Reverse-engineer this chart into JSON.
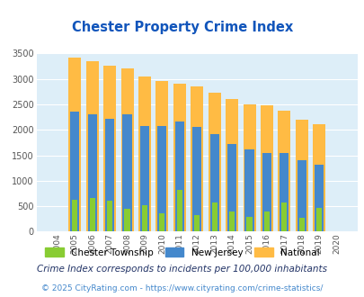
{
  "title": "Chester Property Crime Index",
  "years": [
    2004,
    2005,
    2006,
    2007,
    2008,
    2009,
    2010,
    2011,
    2012,
    2013,
    2014,
    2015,
    2016,
    2017,
    2018,
    2019,
    2020
  ],
  "chester": [
    0,
    620,
    660,
    610,
    450,
    520,
    360,
    820,
    330,
    570,
    400,
    290,
    400,
    570,
    280,
    470,
    0
  ],
  "nj": [
    0,
    2360,
    2310,
    2210,
    2310,
    2070,
    2080,
    2170,
    2060,
    1910,
    1720,
    1610,
    1550,
    1550,
    1400,
    1310,
    0
  ],
  "national": [
    0,
    3420,
    3340,
    3260,
    3210,
    3040,
    2960,
    2910,
    2860,
    2730,
    2600,
    2500,
    2480,
    2370,
    2200,
    2110,
    0
  ],
  "chester_color": "#88cc33",
  "nj_color": "#4488cc",
  "national_color": "#ffbb44",
  "bg_color": "#ddeef8",
  "ylim": [
    0,
    3500
  ],
  "yticks": [
    0,
    500,
    1000,
    1500,
    2000,
    2500,
    3000,
    3500
  ],
  "footnote1": "Crime Index corresponds to incidents per 100,000 inhabitants",
  "footnote2": "© 2025 CityRating.com - https://www.cityrating.com/crime-statistics/",
  "title_color": "#1155bb",
  "footnote1_color": "#223366",
  "footnote2_color": "#4488cc"
}
